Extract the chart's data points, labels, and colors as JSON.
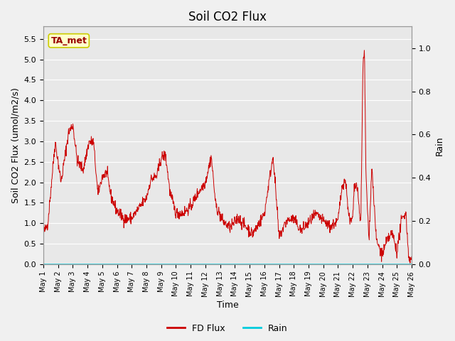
{
  "title": "Soil CO2 Flux",
  "ylabel_left": "Soil CO2 Flux (umol/m2/s)",
  "ylabel_right": "Rain",
  "xlabel": "Time",
  "ylim_left": [
    0.0,
    5.8
  ],
  "ylim_right": [
    0.0,
    1.1
  ],
  "yticks_left": [
    0.0,
    0.5,
    1.0,
    1.5,
    2.0,
    2.5,
    3.0,
    3.5,
    4.0,
    4.5,
    5.0,
    5.5
  ],
  "yticks_right": [
    0.0,
    0.2,
    0.4,
    0.6,
    0.8,
    1.0
  ],
  "flux_color": "#cc0000",
  "rain_color": "#00ccdd",
  "plot_bg": "#e8e8e8",
  "fig_bg": "#f0f0f0",
  "grid_color": "#ffffff",
  "annotation_text": "TA_met",
  "annotation_bg": "#ffffcc",
  "annotation_border": "#cccc00",
  "legend_labels": [
    "FD Flux",
    "Rain"
  ],
  "title_fontsize": 12,
  "label_fontsize": 9,
  "tick_fontsize": 8
}
